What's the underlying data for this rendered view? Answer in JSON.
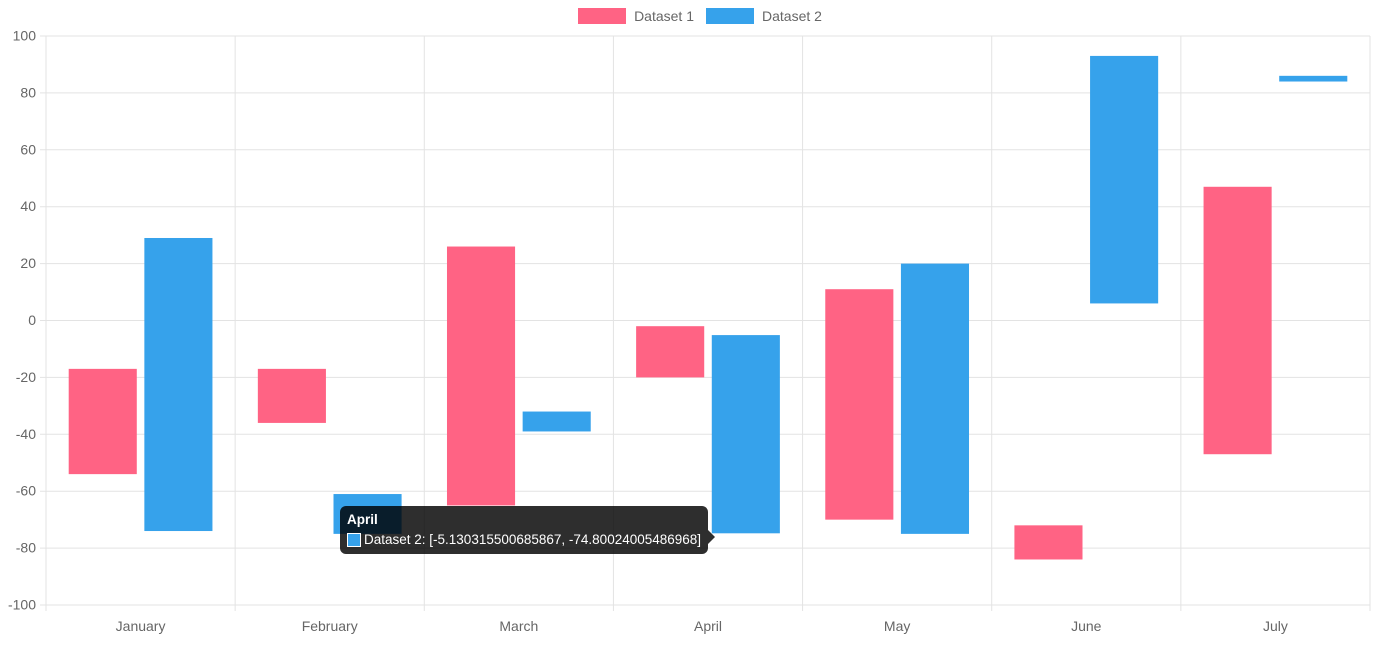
{
  "chart_data": {
    "type": "bar",
    "subtype": "floating",
    "categories": [
      "January",
      "February",
      "March",
      "April",
      "May",
      "June",
      "July"
    ],
    "ylim": [
      -100,
      100
    ],
    "yticks": [
      100,
      80,
      60,
      40,
      20,
      0,
      -20,
      -40,
      -60,
      -80,
      -100
    ],
    "grid": true,
    "legend_position": "top",
    "series": [
      {
        "name": "Dataset 1",
        "color": "#ff6384",
        "values": [
          [
            -17,
            -54
          ],
          [
            -17,
            -36
          ],
          [
            26,
            -65
          ],
          [
            -2,
            -20
          ],
          [
            11,
            -70
          ],
          [
            -72,
            -84
          ],
          [
            47,
            -47
          ]
        ]
      },
      {
        "name": "Dataset 2",
        "color": "#36a2eb",
        "values": [
          [
            29,
            -74
          ],
          [
            -61,
            -75
          ],
          [
            -32,
            -39
          ],
          [
            -5.130315500685867,
            -74.80024005486968
          ],
          [
            20,
            -75
          ],
          [
            93,
            6
          ],
          [
            86,
            84
          ]
        ]
      }
    ]
  },
  "tooltip": {
    "title": "April",
    "label": "Dataset 2: [-5.130315500685867, -74.80024005486968]",
    "color": "#36a2eb"
  }
}
